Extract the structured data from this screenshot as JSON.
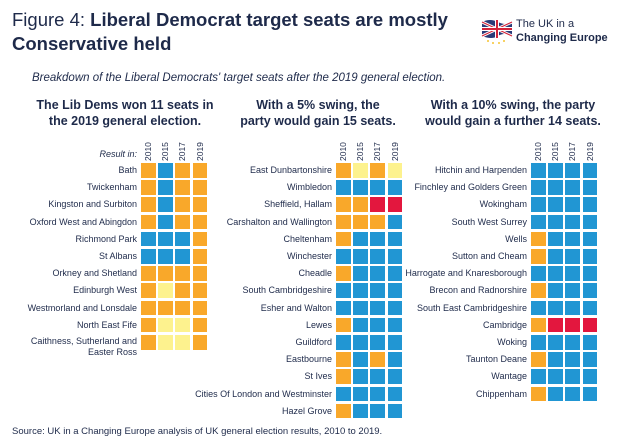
{
  "title": {
    "figure": "Figure 4: ",
    "text_line1": "Liberal Democrat target seats are mostly",
    "text_line2": "Conservative held"
  },
  "subtitle": "Breakdown of the Liberal Democrats' target seats after the 2019 general election.",
  "logo": {
    "line1": "The UK in a",
    "line2": "Changing Europe"
  },
  "source": "Source: UK in a Changing Europe analysis of UK general election results, 2010 to 2019.",
  "colors": {
    "con": "#2196d3",
    "ld": "#f9a82a",
    "snp": "#fdf28e",
    "lab": "#e3173e"
  },
  "chart_data": [
    {
      "type": "heatmap",
      "title_line1": "The Lib Dems won 11 seats in",
      "title_line2": "the 2019 general election.",
      "row_header": "Result in:",
      "years": [
        "2010",
        "2015",
        "2017",
        "2019"
      ],
      "rows": [
        {
          "seat": "Bath",
          "results": [
            "ld",
            "con",
            "ld",
            "ld"
          ]
        },
        {
          "seat": "Twickenham",
          "results": [
            "ld",
            "con",
            "ld",
            "ld"
          ]
        },
        {
          "seat": "Kingston and Surbiton",
          "results": [
            "ld",
            "con",
            "ld",
            "ld"
          ]
        },
        {
          "seat": "Oxford West and Abingdon",
          "results": [
            "ld",
            "con",
            "ld",
            "ld"
          ]
        },
        {
          "seat": "Richmond Park",
          "results": [
            "con",
            "con",
            "con",
            "ld"
          ]
        },
        {
          "seat": "St Albans",
          "results": [
            "con",
            "con",
            "con",
            "ld"
          ]
        },
        {
          "seat": "Orkney and Shetland",
          "results": [
            "ld",
            "ld",
            "ld",
            "ld"
          ]
        },
        {
          "seat": "Edinburgh West",
          "results": [
            "ld",
            "snp",
            "ld",
            "ld"
          ]
        },
        {
          "seat": "Westmorland and Lonsdale",
          "results": [
            "ld",
            "ld",
            "ld",
            "ld"
          ]
        },
        {
          "seat": "North East Fife",
          "results": [
            "ld",
            "snp",
            "snp",
            "ld"
          ]
        },
        {
          "seat": "Caithness, Sutherland and Easter Ross",
          "results": [
            "ld",
            "snp",
            "snp",
            "ld"
          ]
        }
      ]
    },
    {
      "type": "heatmap",
      "title_line1": "With a 5% swing, the",
      "title_line2": "party would gain 15 seats.",
      "years": [
        "2010",
        "2015",
        "2017",
        "2019"
      ],
      "rows": [
        {
          "seat": "East Dunbartonshire",
          "results": [
            "ld",
            "snp",
            "ld",
            "snp"
          ]
        },
        {
          "seat": "Wimbledon",
          "results": [
            "con",
            "con",
            "con",
            "con"
          ]
        },
        {
          "seat": "Sheffield, Hallam",
          "results": [
            "ld",
            "ld",
            "lab",
            "lab"
          ]
        },
        {
          "seat": "Carshalton and Wallington",
          "results": [
            "ld",
            "ld",
            "ld",
            "con"
          ]
        },
        {
          "seat": "Cheltenham",
          "results": [
            "ld",
            "con",
            "con",
            "con"
          ]
        },
        {
          "seat": "Winchester",
          "results": [
            "con",
            "con",
            "con",
            "con"
          ]
        },
        {
          "seat": "Cheadle",
          "results": [
            "ld",
            "con",
            "con",
            "con"
          ]
        },
        {
          "seat": "South Cambridgeshire",
          "results": [
            "con",
            "con",
            "con",
            "con"
          ]
        },
        {
          "seat": "Esher and Walton",
          "results": [
            "con",
            "con",
            "con",
            "con"
          ]
        },
        {
          "seat": "Lewes",
          "results": [
            "ld",
            "con",
            "con",
            "con"
          ]
        },
        {
          "seat": "Guildford",
          "results": [
            "con",
            "con",
            "con",
            "con"
          ]
        },
        {
          "seat": "Eastbourne",
          "results": [
            "ld",
            "con",
            "ld",
            "con"
          ]
        },
        {
          "seat": "St Ives",
          "results": [
            "ld",
            "con",
            "con",
            "con"
          ]
        },
        {
          "seat": "Cities Of London and Westminster",
          "results": [
            "con",
            "con",
            "con",
            "con"
          ]
        },
        {
          "seat": "Hazel Grove",
          "results": [
            "ld",
            "con",
            "con",
            "con"
          ]
        }
      ]
    },
    {
      "type": "heatmap",
      "title_line1": "With a 10% swing, the party",
      "title_line2": "would gain a further 14 seats.",
      "years": [
        "2010",
        "2015",
        "2017",
        "2019"
      ],
      "rows": [
        {
          "seat": "Hitchin and Harpenden",
          "results": [
            "con",
            "con",
            "con",
            "con"
          ]
        },
        {
          "seat": "Finchley and Golders Green",
          "results": [
            "con",
            "con",
            "con",
            "con"
          ]
        },
        {
          "seat": "Wokingham",
          "results": [
            "con",
            "con",
            "con",
            "con"
          ]
        },
        {
          "seat": "South West Surrey",
          "results": [
            "con",
            "con",
            "con",
            "con"
          ]
        },
        {
          "seat": "Wells",
          "results": [
            "ld",
            "con",
            "con",
            "con"
          ]
        },
        {
          "seat": "Sutton and Cheam",
          "results": [
            "ld",
            "con",
            "con",
            "con"
          ]
        },
        {
          "seat": "Harrogate and Knaresborough",
          "results": [
            "con",
            "con",
            "con",
            "con"
          ]
        },
        {
          "seat": "Brecon and Radnorshire",
          "results": [
            "ld",
            "con",
            "con",
            "con"
          ]
        },
        {
          "seat": "South East Cambridgeshire",
          "results": [
            "con",
            "con",
            "con",
            "con"
          ]
        },
        {
          "seat": "Cambridge",
          "results": [
            "ld",
            "lab",
            "lab",
            "lab"
          ]
        },
        {
          "seat": "Woking",
          "results": [
            "con",
            "con",
            "con",
            "con"
          ]
        },
        {
          "seat": "Taunton Deane",
          "results": [
            "ld",
            "con",
            "con",
            "con"
          ]
        },
        {
          "seat": "Wantage",
          "results": [
            "con",
            "con",
            "con",
            "con"
          ]
        },
        {
          "seat": "Chippenham",
          "results": [
            "ld",
            "con",
            "con",
            "con"
          ]
        }
      ]
    }
  ]
}
